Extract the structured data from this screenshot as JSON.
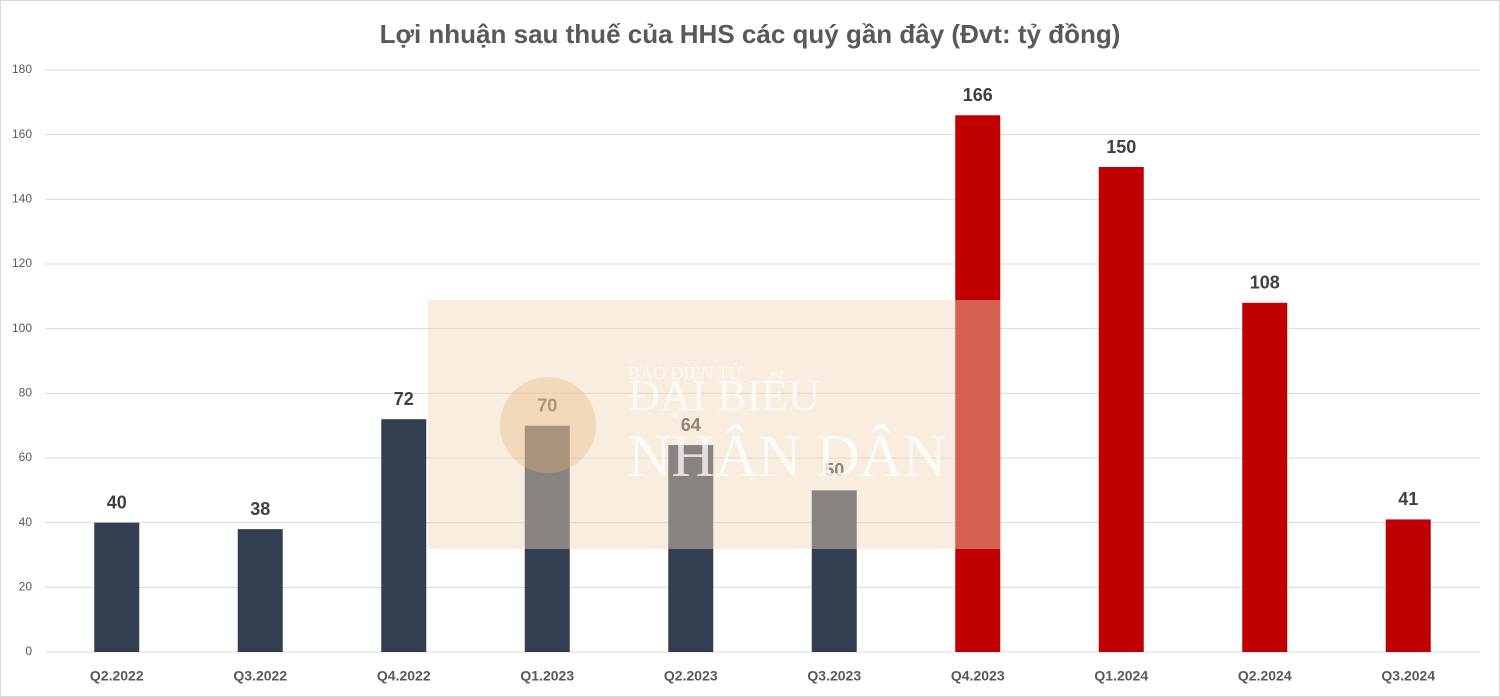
{
  "chart_data": {
    "type": "bar",
    "title": "Lợi nhuận sau thuế của HHS các quý gần đây (Đvt: tỷ đồng)",
    "categories": [
      "Q2.2022",
      "Q3.2022",
      "Q4.2022",
      "Q1.2023",
      "Q2.2023",
      "Q3.2023",
      "Q4.2023",
      "Q1.2024",
      "Q2.2024",
      "Q3.2024"
    ],
    "values": [
      40,
      38,
      72,
      70,
      64,
      50,
      166,
      150,
      108,
      41
    ],
    "colors": [
      "#333f50",
      "#333f50",
      "#333f50",
      "#333f50",
      "#333f50",
      "#333f50",
      "#c00000",
      "#c00000",
      "#c00000",
      "#c00000"
    ],
    "ylim": [
      0,
      180
    ],
    "yticks": [
      0,
      20,
      40,
      60,
      80,
      100,
      120,
      140,
      160,
      180
    ],
    "grid": true
  },
  "watermark": {
    "lines": [
      "BÁO ĐIỆN TỬ",
      "ĐẠI BIỂU",
      "NHÂN DÂN"
    ]
  }
}
